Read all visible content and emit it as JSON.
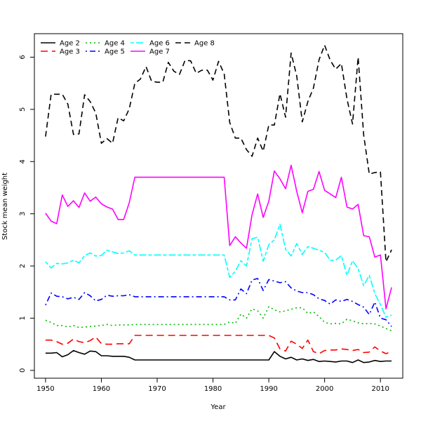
{
  "chart_data": {
    "type": "line",
    "title": "",
    "xlabel": "Year",
    "ylabel": "Stock mean weight",
    "xlim": [
      1948,
      2014
    ],
    "ylim": [
      -0.15,
      6.45
    ],
    "x_ticks": [
      1950,
      1960,
      1970,
      1980,
      1990,
      2000,
      2010
    ],
    "y_ticks": [
      0,
      1,
      2,
      3,
      4,
      5,
      6
    ],
    "grid": false,
    "legend": {
      "position": "top-left",
      "columns": 4
    },
    "x": [
      1950,
      1951,
      1952,
      1953,
      1954,
      1955,
      1956,
      1957,
      1958,
      1959,
      1960,
      1961,
      1962,
      1963,
      1964,
      1965,
      1966,
      1967,
      1968,
      1969,
      1970,
      1971,
      1972,
      1973,
      1974,
      1975,
      1976,
      1977,
      1978,
      1979,
      1980,
      1981,
      1982,
      1983,
      1984,
      1985,
      1986,
      1987,
      1988,
      1989,
      1990,
      1991,
      1992,
      1993,
      1994,
      1995,
      1996,
      1997,
      1998,
      1999,
      2000,
      2001,
      2002,
      2003,
      2004,
      2005,
      2006,
      2007,
      2008,
      2009,
      2010,
      2011,
      2012
    ],
    "series": [
      {
        "name": "Age 2",
        "color": "#000000",
        "dash": "solid",
        "values": [
          0.33,
          0.33,
          0.34,
          0.26,
          0.3,
          0.38,
          0.34,
          0.31,
          0.37,
          0.36,
          0.28,
          0.28,
          0.27,
          0.27,
          0.27,
          0.25,
          0.2,
          0.2,
          0.2,
          0.2,
          0.2,
          0.2,
          0.2,
          0.2,
          0.2,
          0.2,
          0.2,
          0.2,
          0.2,
          0.2,
          0.2,
          0.2,
          0.2,
          0.2,
          0.2,
          0.2,
          0.2,
          0.2,
          0.2,
          0.2,
          0.2,
          0.36,
          0.27,
          0.22,
          0.25,
          0.2,
          0.22,
          0.19,
          0.21,
          0.17,
          0.18,
          0.17,
          0.16,
          0.18,
          0.18,
          0.15,
          0.2,
          0.15,
          0.16,
          0.19,
          0.17,
          0.18,
          0.18
        ]
      },
      {
        "name": "Age 3",
        "color": "#ff0000",
        "dash": "longdash",
        "values": [
          0.58,
          0.58,
          0.55,
          0.5,
          0.52,
          0.6,
          0.55,
          0.53,
          0.57,
          0.64,
          0.51,
          0.5,
          0.5,
          0.51,
          0.51,
          0.51,
          0.67,
          0.67,
          0.67,
          0.67,
          0.67,
          0.67,
          0.67,
          0.67,
          0.67,
          0.67,
          0.67,
          0.67,
          0.67,
          0.67,
          0.67,
          0.67,
          0.67,
          0.67,
          0.67,
          0.67,
          0.67,
          0.67,
          0.67,
          0.67,
          0.67,
          0.62,
          0.41,
          0.37,
          0.56,
          0.5,
          0.42,
          0.58,
          0.36,
          0.32,
          0.38,
          0.39,
          0.39,
          0.41,
          0.4,
          0.38,
          0.4,
          0.34,
          0.35,
          0.45,
          0.37,
          0.32,
          0.36
        ]
      },
      {
        "name": "Age 4",
        "color": "#00bb00",
        "dash": "dotted",
        "values": [
          0.96,
          0.92,
          0.86,
          0.86,
          0.83,
          0.86,
          0.82,
          0.83,
          0.84,
          0.85,
          0.86,
          0.88,
          0.86,
          0.87,
          0.87,
          0.87,
          0.88,
          0.88,
          0.88,
          0.88,
          0.88,
          0.88,
          0.88,
          0.88,
          0.88,
          0.88,
          0.88,
          0.88,
          0.88,
          0.88,
          0.88,
          0.88,
          0.88,
          0.93,
          0.9,
          1.08,
          1.0,
          1.18,
          1.14,
          1.0,
          1.22,
          1.16,
          1.12,
          1.14,
          1.17,
          1.2,
          1.2,
          1.09,
          1.12,
          1.03,
          0.92,
          0.89,
          0.9,
          0.89,
          0.98,
          0.95,
          0.91,
          0.89,
          0.9,
          0.89,
          0.85,
          0.8,
          0.76
        ]
      },
      {
        "name": "Age 5",
        "color": "#0000ff",
        "dash": "dotdash",
        "values": [
          1.25,
          1.48,
          1.42,
          1.41,
          1.37,
          1.4,
          1.36,
          1.49,
          1.43,
          1.33,
          1.36,
          1.44,
          1.42,
          1.43,
          1.43,
          1.45,
          1.41,
          1.41,
          1.41,
          1.41,
          1.41,
          1.41,
          1.41,
          1.41,
          1.41,
          1.41,
          1.41,
          1.41,
          1.41,
          1.41,
          1.41,
          1.41,
          1.41,
          1.35,
          1.35,
          1.56,
          1.47,
          1.73,
          1.76,
          1.53,
          1.74,
          1.71,
          1.68,
          1.7,
          1.58,
          1.52,
          1.49,
          1.49,
          1.45,
          1.37,
          1.34,
          1.27,
          1.35,
          1.32,
          1.36,
          1.32,
          1.26,
          1.21,
          1.07,
          1.31,
          1.0,
          0.97,
          0.84
        ]
      },
      {
        "name": "Age 6",
        "color": "#00ffff",
        "dash": "twodash",
        "values": [
          2.08,
          1.96,
          2.05,
          2.04,
          2.06,
          2.11,
          2.06,
          2.2,
          2.25,
          2.19,
          2.2,
          2.3,
          2.27,
          2.24,
          2.25,
          2.29,
          2.21,
          2.21,
          2.21,
          2.21,
          2.21,
          2.21,
          2.21,
          2.21,
          2.21,
          2.21,
          2.21,
          2.21,
          2.21,
          2.21,
          2.21,
          2.21,
          2.21,
          1.78,
          1.9,
          2.1,
          2.0,
          2.52,
          2.55,
          2.09,
          2.41,
          2.5,
          2.8,
          2.32,
          2.19,
          2.43,
          2.22,
          2.37,
          2.34,
          2.3,
          2.26,
          2.11,
          2.11,
          2.2,
          1.82,
          2.1,
          1.95,
          1.62,
          1.82,
          1.47,
          1.26,
          1.02,
          1.06
        ]
      },
      {
        "name": "Age 7",
        "color": "#ff00ff",
        "dash": "solid",
        "values": [
          3.01,
          2.86,
          2.81,
          3.36,
          3.14,
          3.25,
          3.12,
          3.4,
          3.24,
          3.32,
          3.19,
          3.13,
          3.09,
          2.89,
          2.89,
          3.21,
          3.7,
          3.7,
          3.7,
          3.7,
          3.7,
          3.7,
          3.7,
          3.7,
          3.7,
          3.7,
          3.7,
          3.7,
          3.7,
          3.7,
          3.7,
          3.7,
          3.7,
          2.39,
          2.56,
          2.44,
          2.34,
          2.98,
          3.38,
          2.93,
          3.24,
          3.82,
          3.67,
          3.48,
          3.93,
          3.43,
          3.02,
          3.43,
          3.47,
          3.81,
          3.45,
          3.38,
          3.31,
          3.7,
          3.13,
          3.09,
          3.18,
          2.58,
          2.56,
          2.17,
          2.21,
          1.18,
          1.59
        ]
      },
      {
        "name": "Age 8",
        "color": "#000000",
        "dash": "dashed",
        "values": [
          4.48,
          5.29,
          5.29,
          5.29,
          5.1,
          4.52,
          4.53,
          5.28,
          5.15,
          4.93,
          4.35,
          4.44,
          4.35,
          4.84,
          4.78,
          5.01,
          5.5,
          5.58,
          5.82,
          5.54,
          5.52,
          5.52,
          5.9,
          5.73,
          5.67,
          5.94,
          5.93,
          5.69,
          5.75,
          5.75,
          5.56,
          5.92,
          5.68,
          4.75,
          4.45,
          4.45,
          4.23,
          4.1,
          4.45,
          4.2,
          4.7,
          4.7,
          5.3,
          4.85,
          6.08,
          5.64,
          4.76,
          5.15,
          5.41,
          5.95,
          6.23,
          5.94,
          5.77,
          5.88,
          5.2,
          4.72,
          6.0,
          4.51,
          3.76,
          3.79,
          3.8,
          2.08,
          2.31
        ]
      }
    ]
  }
}
